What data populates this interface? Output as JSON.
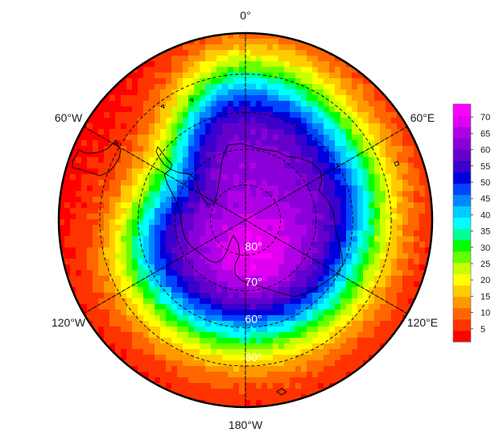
{
  "chart_data": {
    "type": "heatmap",
    "projection": "south-polar-stereographic",
    "title": "",
    "longitude_labels": [
      {
        "lon": 0,
        "text": "0°"
      },
      {
        "lon": -60,
        "text": "60°W"
      },
      {
        "lon": 60,
        "text": "60°E"
      },
      {
        "lon": -120,
        "text": "120°W"
      },
      {
        "lon": 120,
        "text": "120°E"
      },
      {
        "lon": 180,
        "text": "180°W"
      }
    ],
    "latitude_labels": [
      {
        "lat": -80,
        "text": "80°"
      },
      {
        "lat": -70,
        "text": "70°"
      },
      {
        "lat": -60,
        "text": "60°"
      },
      {
        "lat": -50,
        "text": "50°"
      }
    ],
    "latitude_range": [
      -90,
      -40
    ],
    "value_range": [
      1,
      74
    ],
    "field": {
      "pole_value": 63,
      "vortex_center": {
        "lat": -78,
        "lon": 165,
        "value": 72
      },
      "outer_value": 2,
      "edge_latitude_mean": -58,
      "edge_latitude_shift_by_lon": [
        {
          "lon": 0,
          "lat": -50
        },
        {
          "lon": 60,
          "lat": -54
        },
        {
          "lon": 120,
          "lat": -56
        },
        {
          "lon": 180,
          "lat": -57
        },
        {
          "lon": -120,
          "lat": -57
        },
        {
          "lon": -60,
          "lat": -64
        }
      ]
    },
    "colorbar": {
      "ticks": [
        5,
        10,
        15,
        20,
        25,
        30,
        35,
        40,
        45,
        50,
        55,
        60,
        65,
        70
      ],
      "colors": [
        "#ff0000",
        "#ff3300",
        "#ff6600",
        "#ff9900",
        "#ffcc00",
        "#ffff00",
        "#c8ff00",
        "#66ff00",
        "#00ff00",
        "#00ff99",
        "#00ffff",
        "#00ccff",
        "#0088ff",
        "#0044ff",
        "#0000dd",
        "#3a00cc",
        "#6400cc",
        "#8a00d8",
        "#b000e6",
        "#e000f0",
        "#ff00ff"
      ]
    }
  }
}
